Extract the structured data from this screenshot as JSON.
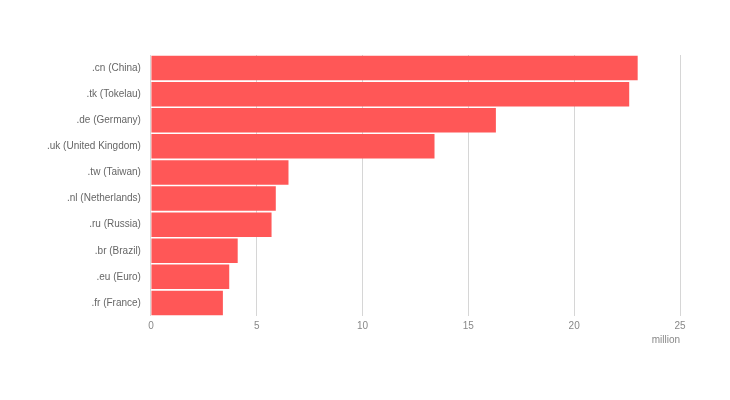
{
  "chart_data": {
    "type": "bar",
    "orientation": "horizontal",
    "categories": [
      ".cn (China)",
      ".tk (Tokelau)",
      ".de (Germany)",
      ".uk (United Kingdom)",
      ".tw (Taiwan)",
      ".nl (Netherlands)",
      ".ru (Russia)",
      ".br (Brazil)",
      ".eu (Euro)",
      ".fr (France)"
    ],
    "values": [
      23.0,
      22.6,
      16.3,
      13.4,
      6.5,
      5.9,
      5.7,
      4.1,
      3.7,
      3.4
    ],
    "color": "#ff5757",
    "xlabel": "million",
    "xlim": [
      0,
      25
    ],
    "xticks": [
      0,
      5,
      10,
      15,
      20,
      25
    ],
    "grid": true
  }
}
